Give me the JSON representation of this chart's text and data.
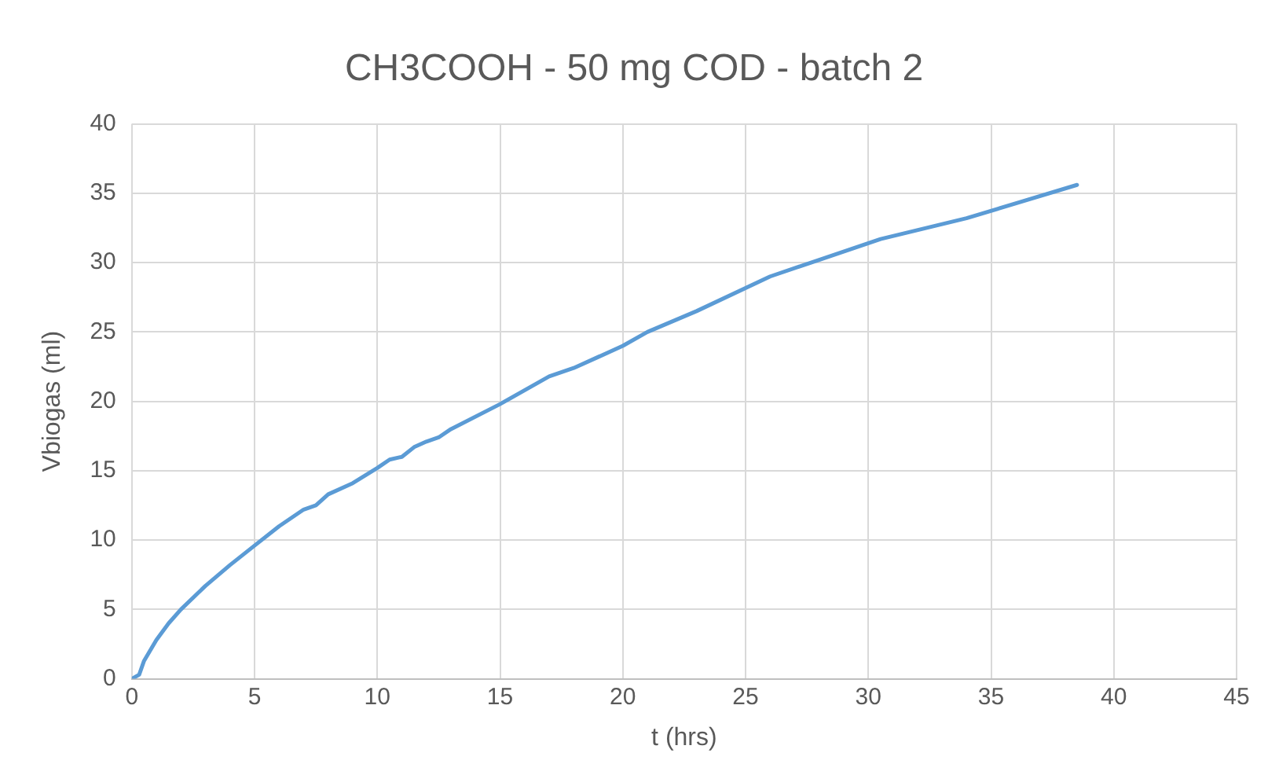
{
  "chart_data": {
    "type": "line",
    "title": "CH3COOH - 50 mg COD - batch 2",
    "xlabel": "t (hrs)",
    "ylabel": "Vbiogas (ml)",
    "series": [
      {
        "color": "#5b9bd5",
        "x": [
          0,
          0.3,
          0.5,
          1,
          1.5,
          2,
          3,
          4,
          5,
          6,
          7,
          7.5,
          8,
          9,
          10,
          10.5,
          11,
          11.5,
          12,
          12.5,
          13,
          15,
          17,
          18,
          19,
          20,
          21,
          23,
          26,
          28,
          30.5,
          34,
          38.5
        ],
        "values": [
          0,
          0.3,
          1.3,
          2.8,
          4,
          5,
          6.7,
          8.2,
          9.6,
          11,
          12.2,
          12.5,
          13.3,
          14.1,
          15.2,
          15.8,
          16,
          16.7,
          17.1,
          17.4,
          18,
          19.8,
          21.8,
          22.4,
          23.2,
          24,
          25,
          26.5,
          29,
          30.2,
          31.7,
          33.2,
          35.6
        ]
      }
    ],
    "xlim": [
      0,
      45
    ],
    "xticks": [
      0,
      5,
      10,
      15,
      20,
      25,
      30,
      35,
      40,
      45
    ],
    "ylim": [
      0,
      40
    ],
    "yticks": [
      0,
      5,
      10,
      15,
      20,
      25,
      30,
      35,
      40
    ],
    "grid": true,
    "marker": "none",
    "line_style": "solid"
  }
}
